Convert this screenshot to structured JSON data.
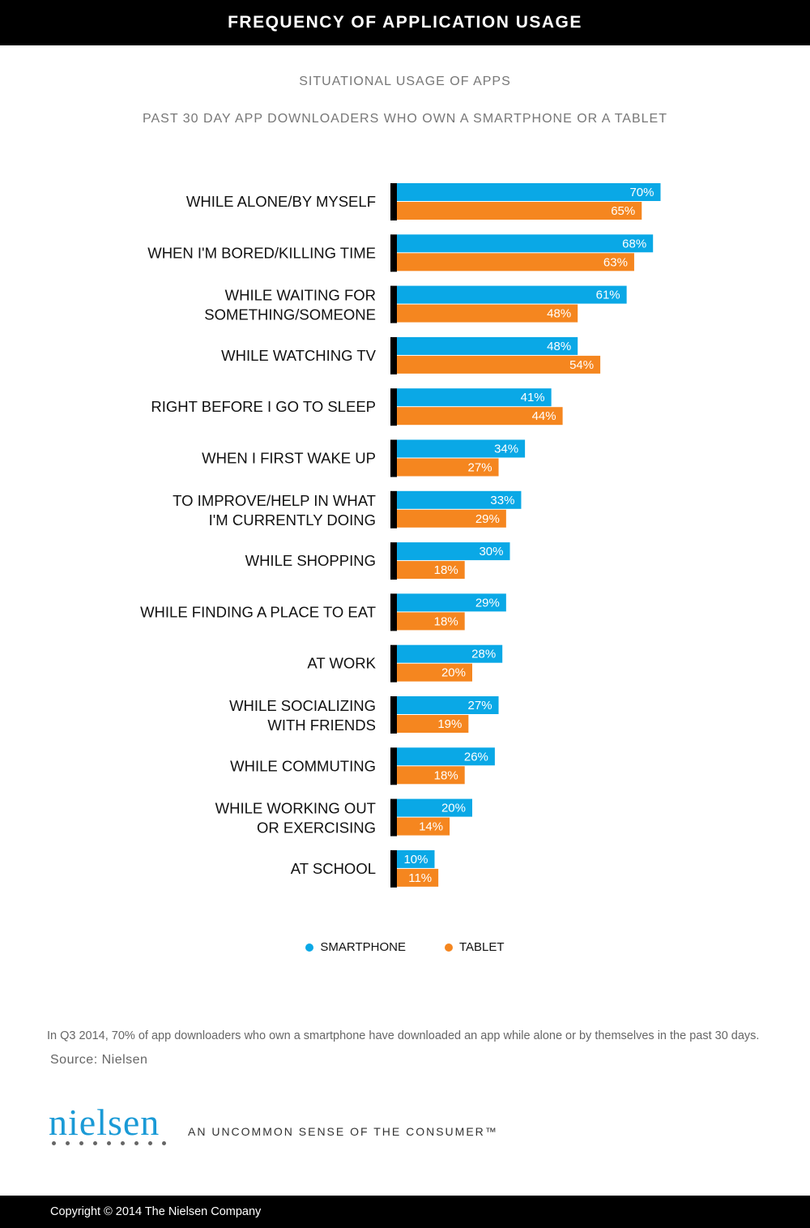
{
  "header": {
    "title": "FREQUENCY OF APPLICATION USAGE"
  },
  "subtitles": {
    "line1": "SITUATIONAL USAGE OF APPS",
    "line2": "PAST 30 DAY APP DOWNLOADERS WHO OWN A SMARTPHONE OR A TABLET"
  },
  "colors": {
    "smartphone": "#0aa8e6",
    "tablet": "#f5861f",
    "axis": "#000000"
  },
  "chart_data": {
    "type": "bar",
    "orientation": "horizontal",
    "categories": [
      "WHILE ALONE/BY MYSELF",
      "WHEN I'M BORED/KILLING TIME",
      "WHILE WAITING FOR\nSOMETHING/SOMEONE",
      "WHILE WATCHING TV",
      "RIGHT BEFORE I GO TO SLEEP",
      "WHEN I FIRST WAKE UP",
      "TO IMPROVE/HELP IN WHAT\nI'M CURRENTLY DOING",
      "WHILE SHOPPING",
      "WHILE FINDING A PLACE TO EAT",
      "AT WORK",
      "WHILE SOCIALIZING\nWITH FRIENDS",
      "WHILE COMMUTING",
      "WHILE WORKING OUT\nOR EXERCISING",
      "AT SCHOOL"
    ],
    "series": [
      {
        "name": "SMARTPHONE",
        "values": [
          70,
          68,
          61,
          48,
          41,
          34,
          33,
          30,
          29,
          28,
          27,
          26,
          20,
          10
        ]
      },
      {
        "name": "TABLET",
        "values": [
          65,
          63,
          48,
          54,
          44,
          27,
          29,
          18,
          18,
          20,
          19,
          18,
          14,
          11
        ]
      }
    ],
    "value_format": "%",
    "grid": false,
    "legend": "bottom"
  },
  "legend": {
    "smartphone": "SMARTPHONE",
    "tablet": "TABLET"
  },
  "footnote": "In Q3 2014, 70% of app downloaders who own a smartphone have downloaded an app while alone or by themselves in the past  30 days.",
  "source": "Source: Nielsen",
  "brand": {
    "logo": "nielsen",
    "tagline": "AN UNCOMMON SENSE OF THE CONSUMER™"
  },
  "copyright": "Copyright © 2014 The Nielsen Company"
}
